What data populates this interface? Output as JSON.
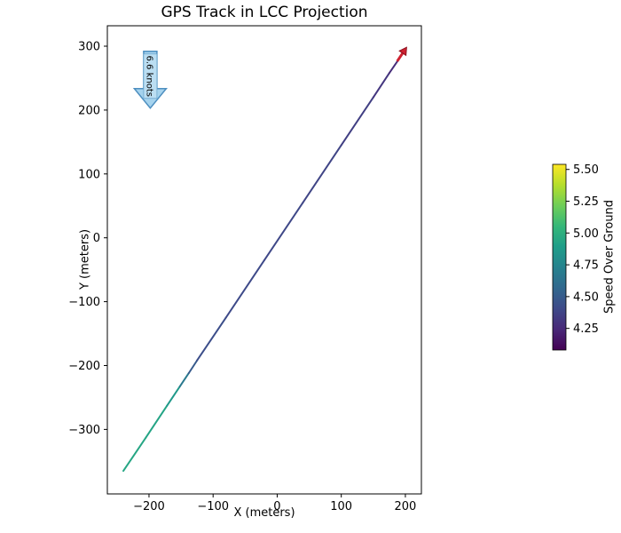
{
  "chart_data": {
    "type": "line",
    "title": "GPS Track in LCC Projection",
    "xlabel": "X (meters)",
    "ylabel": "Y (meters)",
    "xlim": [
      -265,
      225
    ],
    "ylim": [
      -401,
      332
    ],
    "xticks": [
      -200,
      -100,
      0,
      100,
      200
    ],
    "xtick_labels": [
      "−200",
      "−100",
      "0",
      "100",
      "200"
    ],
    "yticks": [
      -300,
      -200,
      -100,
      0,
      100,
      200,
      300
    ],
    "ytick_labels": [
      "−300",
      "−200",
      "−100",
      "0",
      "100",
      "200",
      "300"
    ],
    "grid": false,
    "track": {
      "points": [
        {
          "x": -240,
          "y": -365,
          "sog": 4.95
        },
        {
          "x": -205,
          "y": -313,
          "sog": 4.94
        },
        {
          "x": -172,
          "y": -263,
          "sog": 4.92
        },
        {
          "x": -152,
          "y": -233,
          "sog": 4.8
        },
        {
          "x": -138,
          "y": -212,
          "sog": 4.55
        },
        {
          "x": -125,
          "y": -192,
          "sog": 4.44
        },
        {
          "x": -80,
          "y": -125,
          "sog": 4.41
        },
        {
          "x": -20,
          "y": -35,
          "sog": 4.4
        },
        {
          "x": 40,
          "y": 55,
          "sog": 4.39
        },
        {
          "x": 100,
          "y": 145,
          "sog": 4.37
        },
        {
          "x": 150,
          "y": 220,
          "sog": 4.33
        },
        {
          "x": 175,
          "y": 258,
          "sog": 4.29
        },
        {
          "x": 190,
          "y": 280,
          "sog": 4.24
        },
        {
          "x": 195,
          "y": 288,
          "sog": 4.18
        }
      ],
      "line_width": 2
    },
    "colorbar": {
      "label": "Speed Over Ground",
      "ticks": [
        4.25,
        4.5,
        4.75,
        5.0,
        5.25,
        5.5
      ],
      "tick_labels": [
        "4.25",
        "4.50",
        "4.75",
        "5.00",
        "5.25",
        "5.50"
      ],
      "vmin": 4.08,
      "vmax": 5.54,
      "colormap": "viridis"
    },
    "annotation": {
      "text": "6.6 knots",
      "x": -198,
      "y_start": 292,
      "y_end": 203,
      "fill": "#a5d3ee",
      "edge": "#4e8fc0",
      "text_box_fill": "#bbdef2",
      "text_box_edge": "#6fa8cf"
    },
    "end_marker": {
      "shape": "arrow",
      "x": 195,
      "y": 288,
      "heading_deg": 56,
      "color": "#cf2130",
      "edge": "#8c1220"
    }
  }
}
